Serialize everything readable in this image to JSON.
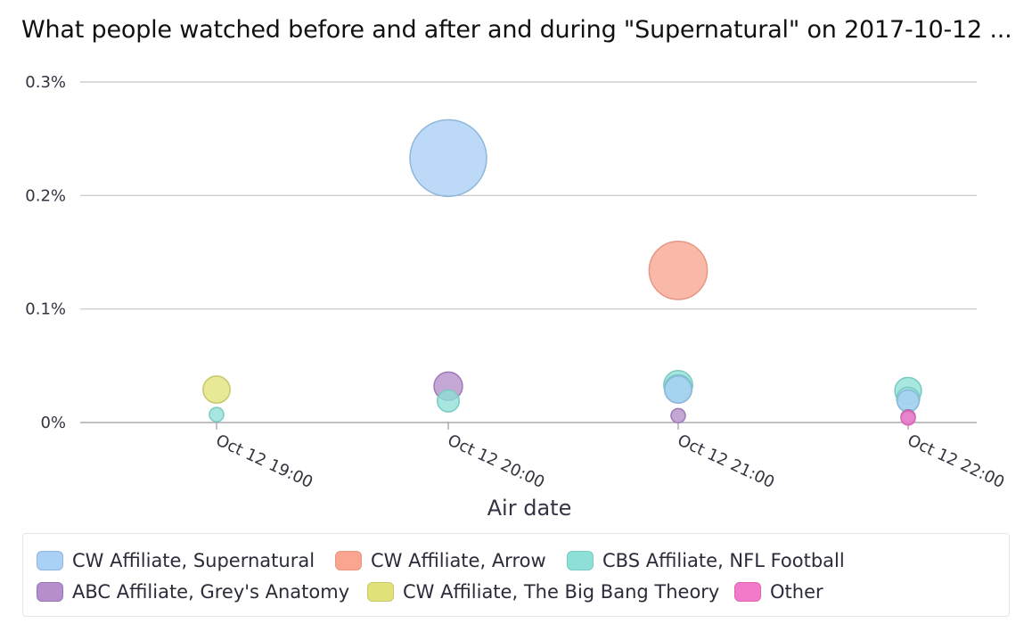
{
  "chart_data": {
    "type": "scatter",
    "title": "What people watched before and after and during \"Supernatural\" on 2017-10-12 ...",
    "xlabel": "Air date",
    "ylabel": "",
    "x_ticks": [
      "Oct 12 19:00",
      "Oct 12 20:00",
      "Oct 12 21:00",
      "Oct 12 22:00"
    ],
    "y_ticks": [
      "0%",
      "0.1%",
      "0.2%",
      "0.3%"
    ],
    "ylim": [
      0,
      0.3
    ],
    "grid": true,
    "legend_position": "bottom",
    "series": [
      {
        "name": "CW Affiliate, Supernatural",
        "color": "#a9d0f5",
        "stroke": "#8fb5da",
        "points": [
          {
            "x": "Oct 12 20:00",
            "y": 0.233
          },
          {
            "x": "Oct 12 21:00",
            "y": 0.029
          },
          {
            "x": "Oct 12 22:00",
            "y": 0.019
          }
        ]
      },
      {
        "name": "CW Affiliate, Arrow",
        "color": "#f9a58f",
        "stroke": "#e59884",
        "points": [
          {
            "x": "Oct 12 21:00",
            "y": 0.134
          }
        ]
      },
      {
        "name": "CBS Affiliate, NFL Football",
        "color": "#8ee0d6",
        "stroke": "#79cbc1",
        "points": [
          {
            "x": "Oct 12 19:00",
            "y": 0.007
          },
          {
            "x": "Oct 12 20:00",
            "y": 0.019
          },
          {
            "x": "Oct 12 21:00",
            "y": 0.033
          },
          {
            "x": "Oct 12 21:00",
            "y": 0.03
          },
          {
            "x": "Oct 12 22:00",
            "y": 0.028
          },
          {
            "x": "Oct 12 22:00",
            "y": 0.021
          }
        ]
      },
      {
        "name": "ABC Affiliate, Grey's Anatomy",
        "color": "#b58ecb",
        "stroke": "#9d78b5",
        "points": [
          {
            "x": "Oct 12 20:00",
            "y": 0.032
          },
          {
            "x": "Oct 12 21:00",
            "y": 0.006
          },
          {
            "x": "Oct 12 22:00",
            "y": 0.005
          }
        ]
      },
      {
        "name": "CW Affiliate, The Big Bang Theory",
        "color": "#e1e37a",
        "stroke": "#c5c76a",
        "points": [
          {
            "x": "Oct 12 19:00",
            "y": 0.029
          }
        ]
      },
      {
        "name": "Other",
        "color": "#f27ac9",
        "stroke": "#d965b0",
        "points": [
          {
            "x": "Oct 12 22:00",
            "y": 0.004
          }
        ]
      }
    ]
  }
}
